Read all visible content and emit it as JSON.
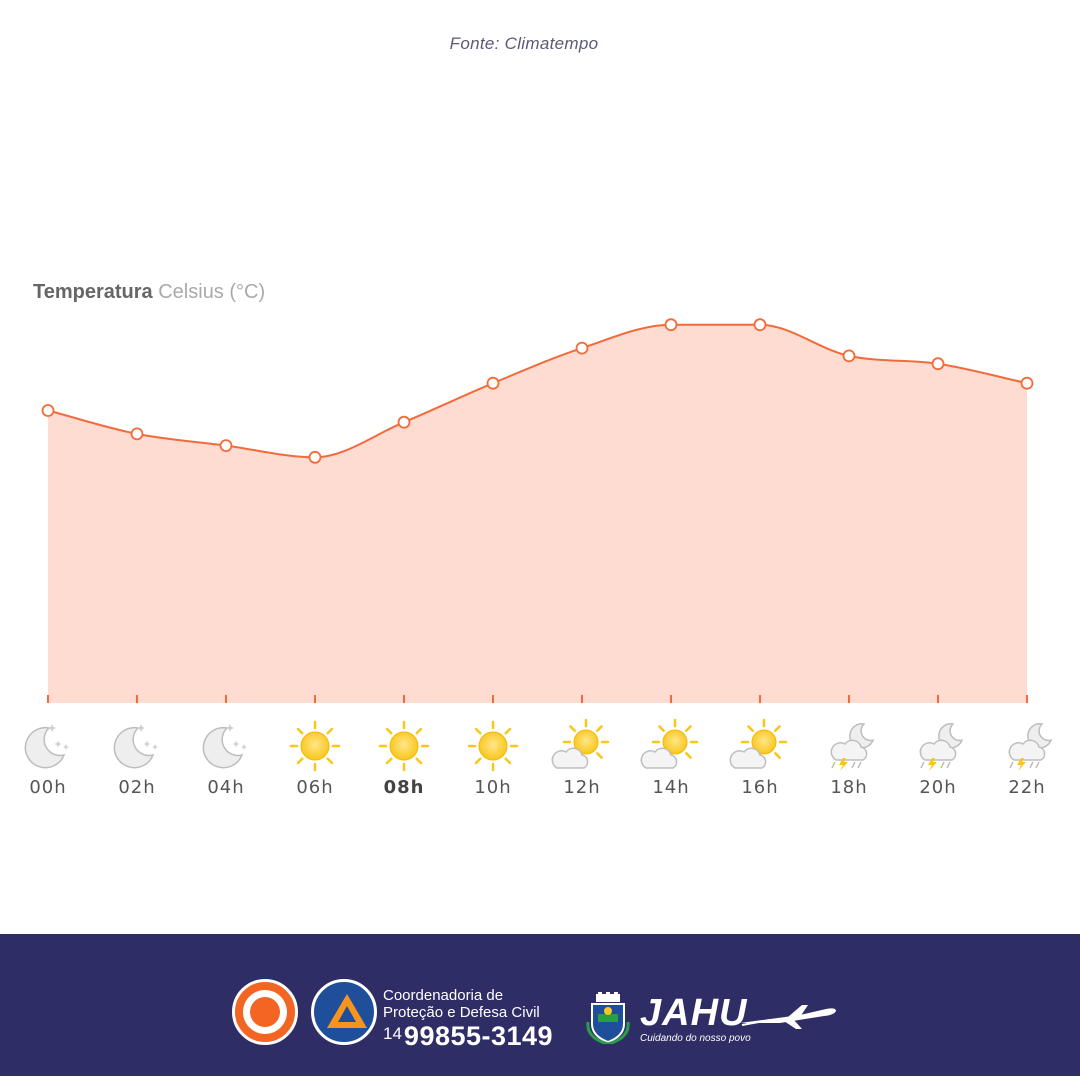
{
  "source_label": "Fonte: Climatempo",
  "chart_title": {
    "main": "Temperatura",
    "unit": "Celsius (°C)"
  },
  "chart_data": {
    "type": "area",
    "title": "Temperatura Celsius (°C)",
    "categories": [
      "00h",
      "02h",
      "04h",
      "06h",
      "08h",
      "10h",
      "12h",
      "14h",
      "16h",
      "18h",
      "20h",
      "22h"
    ],
    "active_category": "08h",
    "series": [
      {
        "values": [
          19.5,
          18.9,
          18.6,
          18.3,
          19.2,
          20.2,
          21.1,
          21.7,
          21.7,
          20.9,
          20.7,
          20.2
        ]
      }
    ],
    "ylim": [
      12,
      24
    ],
    "conditions": [
      "clear-night",
      "clear-night",
      "clear-night",
      "sunny",
      "sunny",
      "sunny",
      "partly-cloudy",
      "partly-cloudy",
      "partly-cloudy",
      "night-storm",
      "night-storm",
      "night-storm"
    ],
    "colors": {
      "line": "#f26b3a",
      "fill": "#ffdcd2",
      "tick": "#f26b3a"
    },
    "grid": false,
    "legend": "none"
  },
  "footer": {
    "coord_line1": "Coordenadoria de",
    "coord_line2": "Proteção e Defesa Civil",
    "phone_ddd": "14",
    "phone_number": "99855-3149",
    "city_name": "JAHU",
    "city_slogan": "Cuidando do nosso povo",
    "background": "#2e2d66"
  }
}
